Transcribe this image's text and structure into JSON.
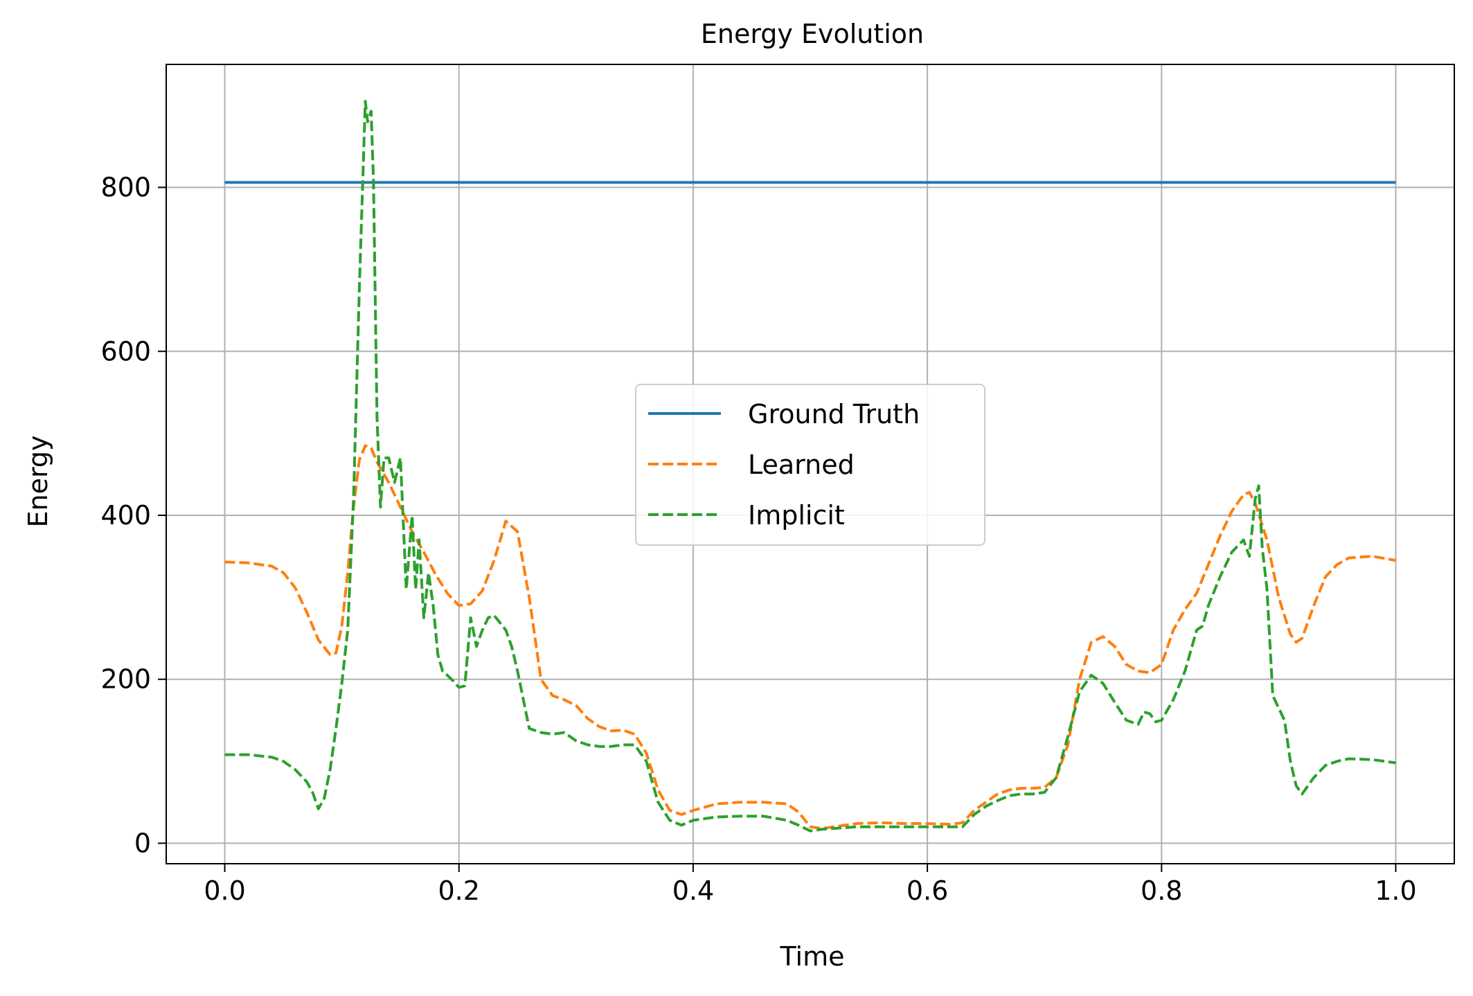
{
  "chart_data": {
    "type": "line",
    "title": "Energy Evolution",
    "xlabel": "Time",
    "ylabel": "Energy",
    "xlim": [
      -0.05,
      1.05
    ],
    "ylim": [
      -25,
      950
    ],
    "xticks": [
      0.0,
      0.2,
      0.4,
      0.6,
      0.8,
      1.0
    ],
    "xtick_labels": [
      "0.0",
      "0.2",
      "0.4",
      "0.6",
      "0.8",
      "1.0"
    ],
    "yticks": [
      0,
      200,
      400,
      600,
      800
    ],
    "ytick_labels": [
      "0",
      "200",
      "400",
      "600",
      "800"
    ],
    "grid": true,
    "legend_position": "center",
    "series": [
      {
        "name": "Ground Truth",
        "color": "#1f77b4",
        "style": "solid",
        "x": [
          0.0,
          1.0
        ],
        "y": [
          806,
          806
        ]
      },
      {
        "name": "Learned",
        "color": "#ff7f0e",
        "style": "dashed",
        "x": [
          0.0,
          0.02,
          0.04,
          0.05,
          0.06,
          0.07,
          0.08,
          0.09,
          0.095,
          0.1,
          0.105,
          0.11,
          0.115,
          0.12,
          0.125,
          0.13,
          0.14,
          0.15,
          0.16,
          0.17,
          0.18,
          0.19,
          0.2,
          0.21,
          0.22,
          0.23,
          0.24,
          0.25,
          0.26,
          0.27,
          0.28,
          0.29,
          0.3,
          0.31,
          0.32,
          0.33,
          0.34,
          0.35,
          0.36,
          0.37,
          0.38,
          0.39,
          0.4,
          0.42,
          0.44,
          0.46,
          0.48,
          0.49,
          0.5,
          0.51,
          0.52,
          0.54,
          0.56,
          0.58,
          0.6,
          0.62,
          0.63,
          0.64,
          0.65,
          0.66,
          0.67,
          0.68,
          0.69,
          0.7,
          0.71,
          0.72,
          0.73,
          0.74,
          0.75,
          0.76,
          0.77,
          0.78,
          0.79,
          0.8,
          0.81,
          0.82,
          0.83,
          0.84,
          0.85,
          0.86,
          0.87,
          0.875,
          0.88,
          0.89,
          0.9,
          0.91,
          0.915,
          0.92,
          0.93,
          0.94,
          0.95,
          0.96,
          0.98,
          1.0
        ],
        "y": [
          343,
          342,
          338,
          330,
          312,
          282,
          248,
          230,
          232,
          265,
          330,
          410,
          468,
          485,
          482,
          465,
          440,
          410,
          380,
          355,
          328,
          305,
          290,
          292,
          308,
          345,
          393,
          380,
          300,
          200,
          180,
          175,
          168,
          152,
          142,
          137,
          138,
          133,
          110,
          65,
          40,
          35,
          40,
          48,
          50,
          50,
          48,
          38,
          20,
          18,
          20,
          24,
          25,
          24,
          24,
          23,
          25,
          40,
          50,
          60,
          65,
          67,
          67,
          68,
          80,
          120,
          200,
          245,
          252,
          240,
          218,
          210,
          208,
          218,
          260,
          285,
          305,
          340,
          375,
          405,
          425,
          428,
          415,
          370,
          300,
          255,
          245,
          250,
          290,
          325,
          340,
          348,
          350,
          345
        ]
      },
      {
        "name": "Implicit",
        "color": "#2ca02c",
        "style": "dashed",
        "x": [
          0.0,
          0.02,
          0.04,
          0.05,
          0.06,
          0.07,
          0.075,
          0.08,
          0.085,
          0.09,
          0.095,
          0.1,
          0.105,
          0.11,
          0.115,
          0.12,
          0.122,
          0.125,
          0.127,
          0.13,
          0.133,
          0.136,
          0.14,
          0.145,
          0.15,
          0.155,
          0.16,
          0.163,
          0.166,
          0.17,
          0.174,
          0.178,
          0.182,
          0.186,
          0.19,
          0.195,
          0.2,
          0.205,
          0.21,
          0.215,
          0.22,
          0.225,
          0.23,
          0.24,
          0.245,
          0.25,
          0.26,
          0.27,
          0.28,
          0.29,
          0.3,
          0.31,
          0.32,
          0.33,
          0.34,
          0.35,
          0.36,
          0.37,
          0.38,
          0.39,
          0.4,
          0.42,
          0.44,
          0.46,
          0.48,
          0.49,
          0.5,
          0.51,
          0.52,
          0.54,
          0.56,
          0.58,
          0.6,
          0.62,
          0.63,
          0.64,
          0.65,
          0.66,
          0.67,
          0.68,
          0.69,
          0.7,
          0.71,
          0.72,
          0.73,
          0.74,
          0.75,
          0.76,
          0.77,
          0.78,
          0.785,
          0.79,
          0.795,
          0.8,
          0.81,
          0.82,
          0.83,
          0.835,
          0.84,
          0.85,
          0.86,
          0.87,
          0.875,
          0.88,
          0.883,
          0.886,
          0.89,
          0.895,
          0.9,
          0.905,
          0.91,
          0.915,
          0.92,
          0.93,
          0.94,
          0.95,
          0.96,
          0.98,
          1.0
        ],
        "y": [
          108,
          108,
          105,
          100,
          90,
          75,
          62,
          42,
          55,
          90,
          140,
          195,
          260,
          420,
          680,
          905,
          880,
          893,
          808,
          520,
          410,
          470,
          470,
          440,
          470,
          310,
          400,
          310,
          370,
          275,
          330,
          290,
          230,
          210,
          205,
          198,
          190,
          192,
          275,
          240,
          260,
          275,
          278,
          260,
          240,
          210,
          140,
          135,
          133,
          135,
          125,
          120,
          118,
          118,
          120,
          120,
          100,
          50,
          28,
          22,
          28,
          32,
          33,
          33,
          28,
          22,
          15,
          17,
          18,
          20,
          20,
          20,
          20,
          20,
          20,
          35,
          45,
          52,
          58,
          60,
          60,
          62,
          80,
          130,
          185,
          205,
          195,
          172,
          150,
          145,
          160,
          158,
          148,
          150,
          175,
          210,
          260,
          265,
          290,
          325,
          355,
          370,
          350,
          420,
          436,
          360,
          310,
          180,
          165,
          150,
          100,
          70,
          60,
          80,
          95,
          100,
          103,
          102,
          98
        ]
      }
    ]
  }
}
